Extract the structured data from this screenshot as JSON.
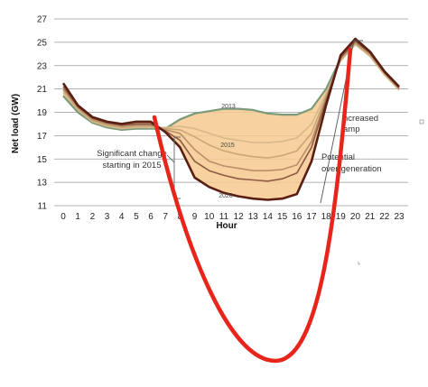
{
  "chart_data": {
    "type": "line",
    "title": "",
    "xlabel": "Hour",
    "ylabel": "Net load (GW)",
    "x": [
      0,
      1,
      2,
      3,
      4,
      5,
      6,
      7,
      8,
      9,
      10,
      11,
      12,
      13,
      14,
      15,
      16,
      17,
      18,
      19,
      20,
      21,
      22,
      23
    ],
    "xlim": [
      0,
      23
    ],
    "ylim": [
      11,
      27
    ],
    "yticks": [
      11,
      13,
      15,
      17,
      19,
      21,
      23,
      25,
      27
    ],
    "grid": "horizontal",
    "series": [
      {
        "name": "2013",
        "color": "#7a9a7a",
        "values": [
          20.4,
          19.0,
          18.1,
          17.7,
          17.5,
          17.6,
          17.6,
          17.6,
          18.4,
          18.9,
          19.1,
          19.3,
          19.3,
          19.2,
          18.9,
          18.8,
          18.8,
          19.3,
          21.0,
          23.6,
          25.0,
          24.0,
          22.4,
          21.0
        ]
      },
      {
        "name": "",
        "color": "#d7b98c",
        "values": [
          20.7,
          19.2,
          18.2,
          17.8,
          17.6,
          17.7,
          17.7,
          17.7,
          17.8,
          17.6,
          17.2,
          16.8,
          16.6,
          16.4,
          16.4,
          16.5,
          16.8,
          18.0,
          20.6,
          23.4,
          24.8,
          23.8,
          22.2,
          20.9
        ]
      },
      {
        "name": "2015",
        "color": "#c9a876",
        "values": [
          20.9,
          19.3,
          18.3,
          17.9,
          17.7,
          17.8,
          17.8,
          17.6,
          17.5,
          16.9,
          16.2,
          15.7,
          15.4,
          15.2,
          15.1,
          15.3,
          15.7,
          17.2,
          20.4,
          23.5,
          24.9,
          23.9,
          22.3,
          21.0
        ]
      },
      {
        "name": "",
        "color": "#b98f6a",
        "values": [
          21.0,
          19.4,
          18.4,
          18.0,
          17.8,
          17.9,
          17.9,
          17.5,
          17.2,
          15.8,
          14.8,
          14.4,
          14.2,
          14.0,
          14.0,
          14.1,
          14.5,
          16.5,
          20.2,
          23.6,
          25.0,
          24.0,
          22.4,
          21.0
        ]
      },
      {
        "name": "",
        "color": "#8e5a44",
        "values": [
          21.2,
          19.5,
          18.5,
          18.1,
          17.9,
          18.0,
          18.0,
          17.4,
          16.6,
          14.8,
          14.0,
          13.6,
          13.3,
          13.2,
          13.1,
          13.3,
          13.8,
          16.0,
          20.0,
          23.7,
          25.1,
          24.1,
          22.4,
          21.1
        ]
      },
      {
        "name": "2020",
        "color": "#5a1e12",
        "values": [
          21.5,
          19.6,
          18.6,
          18.2,
          18.0,
          18.2,
          18.2,
          17.3,
          16.0,
          13.4,
          12.6,
          12.1,
          11.8,
          11.6,
          11.5,
          11.6,
          12.0,
          14.8,
          19.6,
          23.9,
          25.3,
          24.2,
          22.5,
          21.2
        ]
      }
    ],
    "annotations": [
      {
        "text_lines": [
          "Significant change",
          "starting in 2015"
        ]
      },
      {
        "text_lines": [
          "ncreased",
          "amp"
        ]
      },
      {
        "text_lines": [
          "Potential",
          "over-generation"
        ]
      }
    ],
    "overlay": {
      "type": "freehand-curve",
      "color": "#e8251b"
    }
  }
}
